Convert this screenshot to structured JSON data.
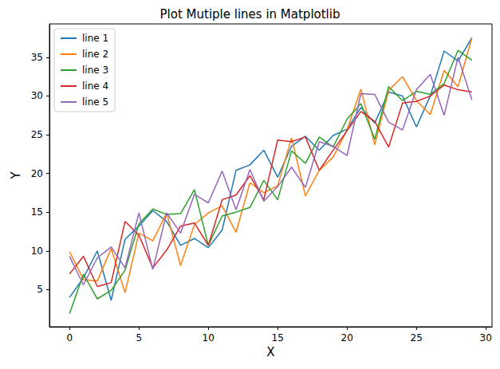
{
  "chart_data": {
    "type": "line",
    "title": "Plot Mutiple lines in Matplotlib",
    "x_label": "X",
    "y_label": "Y",
    "x": [
      0,
      1,
      2,
      3,
      4,
      5,
      6,
      7,
      8,
      9,
      10,
      11,
      12,
      13,
      14,
      15,
      16,
      17,
      18,
      19,
      20,
      21,
      22,
      23,
      24,
      25,
      26,
      27,
      28,
      29
    ],
    "xlim": [
      -1.45,
      30.45
    ],
    "xticks": [
      0,
      5,
      10,
      15,
      20,
      25,
      30
    ],
    "ylim": [
      0.2,
      39.3
    ],
    "yticks": [
      5,
      10,
      15,
      20,
      25,
      30,
      35
    ],
    "grid": false,
    "legend": "upper left",
    "series": [
      {
        "name": "line 1",
        "color": "#1f77b4",
        "values": [
          4.0,
          6.5,
          10.0,
          3.6,
          11.5,
          13.2,
          15.2,
          13.8,
          10.7,
          11.6,
          10.4,
          12.7,
          20.4,
          21.1,
          23.0,
          19.5,
          23.5,
          24.8,
          23.0,
          24.9,
          25.7,
          28.5,
          26.5,
          30.5,
          30.0,
          26.0,
          30.0,
          35.8,
          34.5,
          37.5
        ]
      },
      {
        "name": "line 2",
        "color": "#ff7f0e",
        "values": [
          9.9,
          6.3,
          6.1,
          10.3,
          4.6,
          12.3,
          11.3,
          14.9,
          8.1,
          13.4,
          14.9,
          15.8,
          12.4,
          18.8,
          17.5,
          18.4,
          24.6,
          17.1,
          20.4,
          22.1,
          25.6,
          30.9,
          23.7,
          30.7,
          32.5,
          29.4,
          27.6,
          33.3,
          31.2,
          37.5
        ]
      },
      {
        "name": "line 3",
        "color": "#2ca02c",
        "values": [
          1.9,
          7.0,
          3.8,
          4.9,
          7.5,
          13.5,
          15.4,
          14.7,
          14.8,
          17.9,
          10.7,
          14.5,
          15.0,
          15.6,
          19.1,
          16.6,
          22.9,
          21.3,
          24.7,
          23.4,
          27.0,
          29.0,
          24.4,
          31.2,
          29.4,
          30.6,
          30.2,
          31.6,
          35.9,
          34.6
        ]
      },
      {
        "name": "line 4",
        "color": "#d62728",
        "values": [
          7.0,
          9.3,
          5.4,
          5.9,
          13.8,
          12.0,
          7.8,
          10.1,
          13.2,
          13.6,
          10.7,
          16.6,
          17.2,
          19.7,
          16.6,
          24.3,
          24.1,
          24.7,
          20.4,
          23.0,
          25.5,
          28.0,
          26.7,
          23.4,
          29.1,
          29.3,
          30.0,
          31.4,
          30.8,
          30.5
        ]
      },
      {
        "name": "line 5",
        "color": "#9467bd",
        "values": [
          9.3,
          5.6,
          9.1,
          10.5,
          7.8,
          14.9,
          7.6,
          14.9,
          12.3,
          17.3,
          16.2,
          20.3,
          15.3,
          20.5,
          16.4,
          18.3,
          20.8,
          18.2,
          24.1,
          23.5,
          22.3,
          30.3,
          30.2,
          26.6,
          25.6,
          30.8,
          32.8,
          27.5,
          35.0,
          29.5
        ]
      }
    ]
  }
}
